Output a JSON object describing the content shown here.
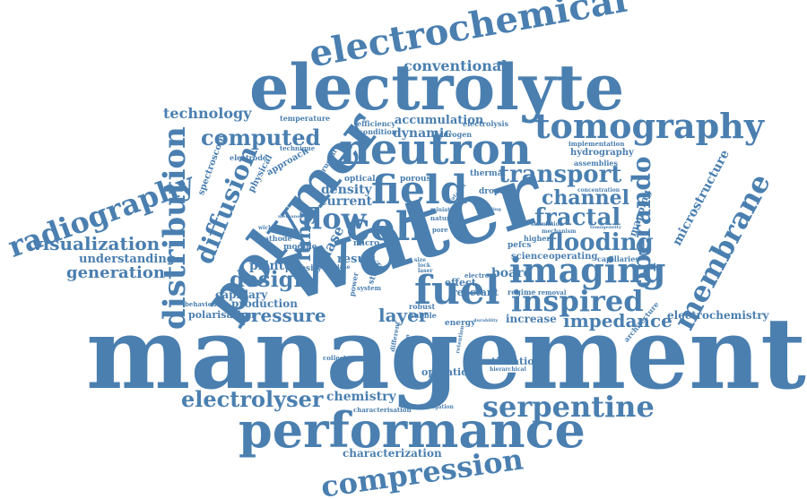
{
  "color": "#4a7fb0",
  "words": [
    "management",
    "water",
    "electrolyte",
    "performance",
    "polymer",
    "neutron",
    "electrochemical",
    "tomography",
    "field",
    "fuel",
    "cell",
    "imaging",
    "distribution",
    "radiography",
    "compression",
    "serpentine",
    "membrane",
    "inspired",
    "transport",
    "operando",
    "electrolyser",
    "flow",
    "diffusion",
    "flooding",
    "fractal",
    "computed",
    "channel",
    "design",
    "pressure",
    "impedance",
    "visualization",
    "technology",
    "conventional",
    "layer",
    "generation",
    "lung",
    "understanding",
    "microstructure",
    "current",
    "electrochemistry",
    "chemistry",
    "dynamic",
    "accumulation",
    "board",
    "printed",
    "characterization",
    "operation",
    "increase",
    "hydrography",
    "phase",
    "result",
    "production",
    "polarisation",
    "capillary",
    "density",
    "mapping",
    "utilization",
    "effect",
    "reactant",
    "science",
    "operating",
    "pefcs",
    "spectroscopy",
    "physical",
    "approach",
    "temperature",
    "hydrogen",
    "electrolysis",
    "efficiency",
    "condition",
    "porous",
    "thermal",
    "assemblies",
    "implementation",
    "module",
    "porosity",
    "cathode",
    "structure",
    "optical",
    "electrode",
    "technique",
    "droplet",
    "capillaries",
    "concentration",
    "behaviour",
    "architecture",
    "energy",
    "regime",
    "collector",
    "investigation",
    "characterisation",
    "hierarchical",
    "removal",
    "mechanism",
    "simulation",
    "tomogeneity",
    "micro",
    "system",
    "higher",
    "electro",
    "robust",
    "bubble",
    "power",
    "retention",
    "different",
    "application",
    "durability",
    "wicking",
    "methanol",
    "drilling",
    "plane",
    "study",
    "miniature",
    "foam",
    "nature",
    "pore",
    "size",
    "lock",
    "laser",
    "catalyst"
  ]
}
